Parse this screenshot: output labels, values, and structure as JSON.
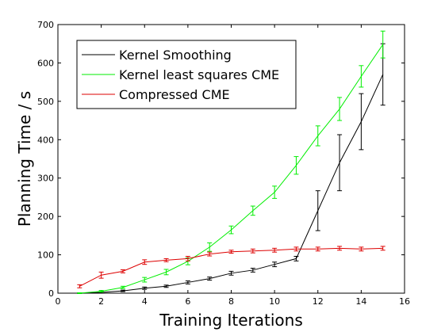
{
  "chart_data": {
    "type": "line",
    "xlabel": "Training Iterations",
    "ylabel": "Planning Time / s",
    "xlim": [
      0,
      16
    ],
    "ylim": [
      0,
      700
    ],
    "xticks": [
      0,
      2,
      4,
      6,
      8,
      10,
      12,
      14,
      16
    ],
    "yticks": [
      0,
      100,
      200,
      300,
      400,
      500,
      600,
      700
    ],
    "grid": false,
    "legend_position": "top-left",
    "x": [
      1,
      2,
      3,
      4,
      5,
      6,
      7,
      8,
      9,
      10,
      11,
      12,
      13,
      14,
      15
    ],
    "series": [
      {
        "name": "Kernel Smoothing",
        "color": "#000000",
        "values": [
          0,
          2,
          6,
          13,
          18,
          28,
          38,
          52,
          60,
          75,
          90,
          215,
          340,
          447,
          570
        ],
        "errors": [
          1,
          2,
          2,
          3,
          3,
          4,
          4,
          5,
          5,
          6,
          6,
          52,
          73,
          73,
          80
        ]
      },
      {
        "name": "Kernel least squares CME",
        "color": "#00ee00",
        "values": [
          0,
          5,
          15,
          35,
          55,
          83,
          120,
          165,
          215,
          263,
          333,
          410,
          480,
          565,
          648
        ],
        "errors": [
          1,
          2,
          3,
          6,
          7,
          9,
          11,
          10,
          12,
          16,
          23,
          26,
          30,
          28,
          35
        ]
      },
      {
        "name": "Compressed CME",
        "color": "#dd0000",
        "values": [
          18,
          47,
          57,
          81,
          86,
          90,
          102,
          108,
          110,
          112,
          115,
          115,
          117,
          115,
          117
        ],
        "errors": [
          4,
          8,
          4,
          6,
          4,
          6,
          5,
          4,
          5,
          5,
          5,
          5,
          5,
          5,
          5
        ]
      }
    ]
  }
}
